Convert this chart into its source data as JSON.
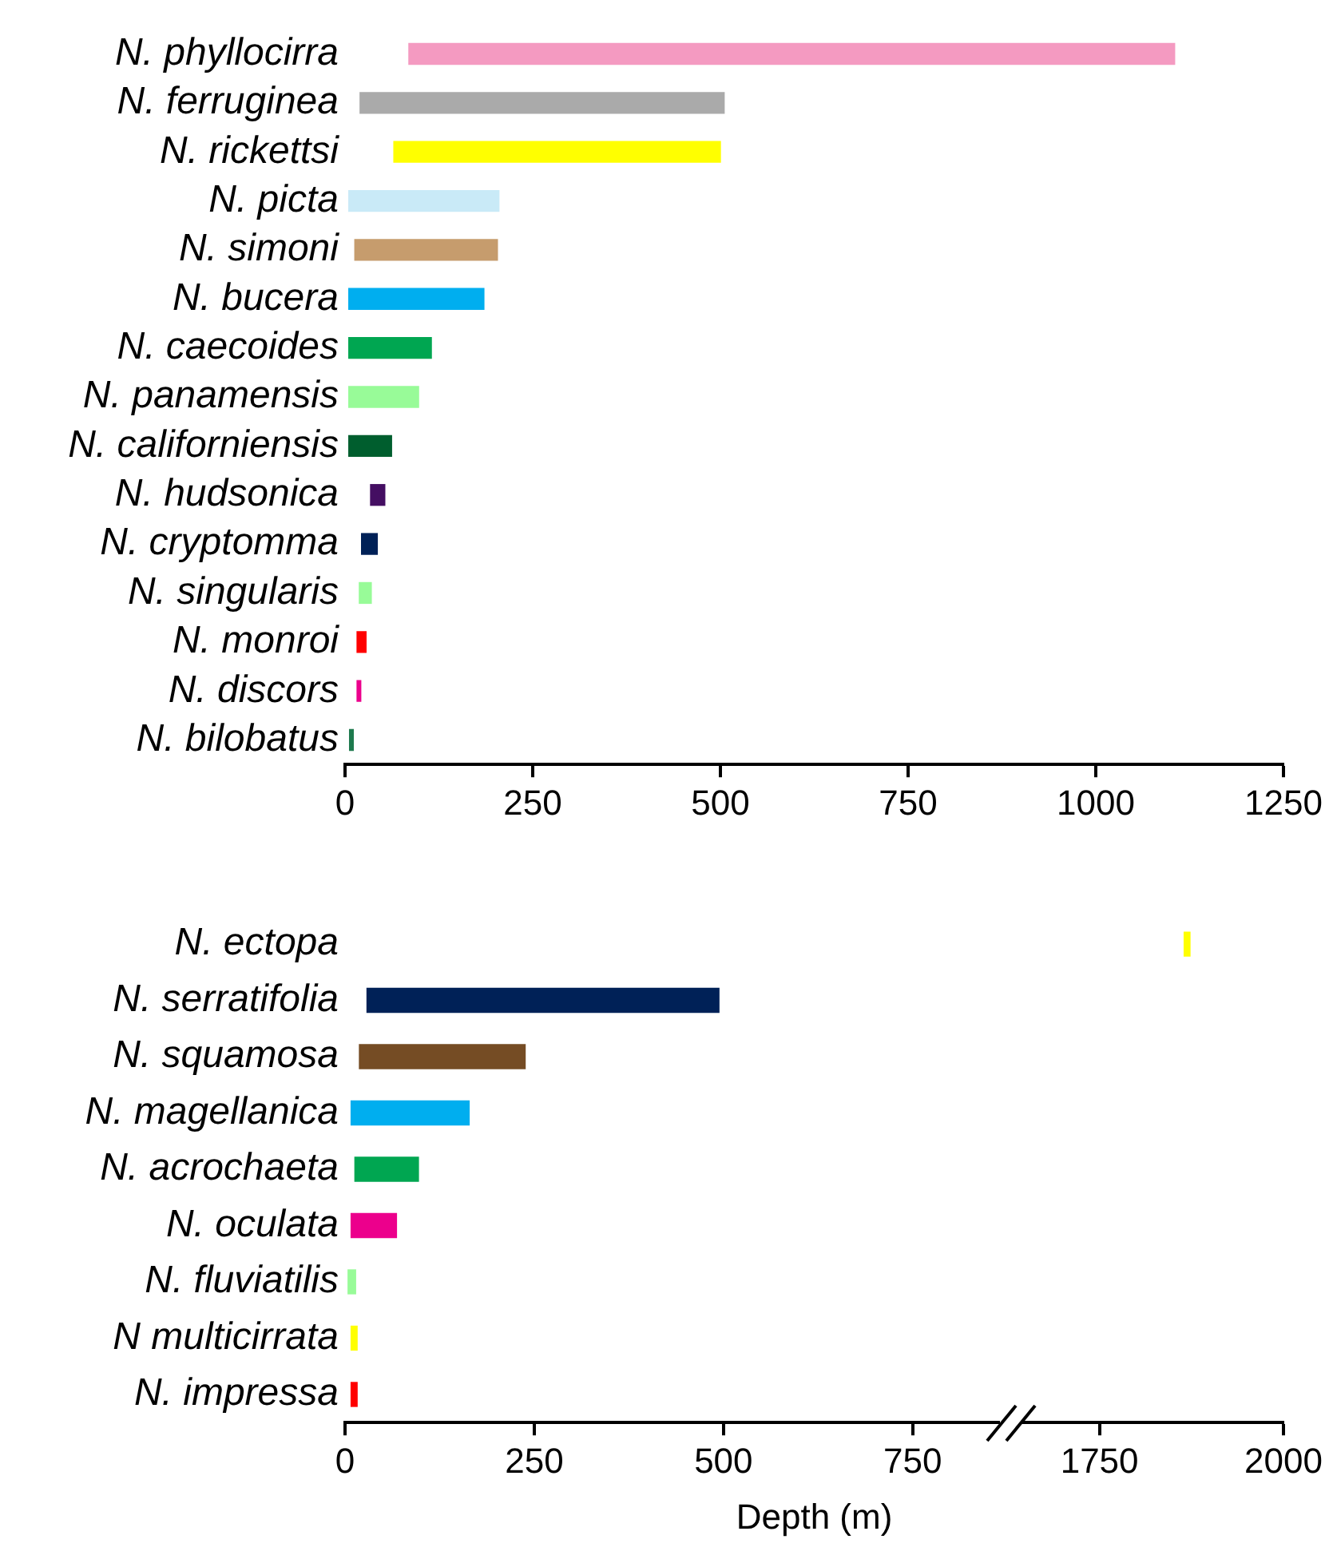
{
  "chart_data": [
    {
      "type": "bar",
      "orientation": "horizontal",
      "grid": false,
      "legend": false,
      "categories": [
        "N. phyllocirra",
        "N. ferruginea",
        "N. rickettsi",
        "N. picta",
        "N. simoni",
        "N. bucera",
        "N. caecoides",
        "N. panamensis",
        "N. californiensis",
        "N. hudsonica",
        "N. cryptomma",
        "N. singularis",
        "N. monroi",
        "N. discors",
        "N. bilobatus"
      ],
      "base": [
        85,
        20,
        65,
        5,
        13,
        5,
        5,
        5,
        5,
        34,
        22,
        19,
        16,
        16,
        6
      ],
      "values": [
        1020,
        485,
        435,
        200,
        190,
        180,
        110,
        93,
        57,
        19,
        21,
        16,
        12,
        5,
        5
      ],
      "colors": [
        "#f49ac1",
        "#aaaaaa",
        "#ffff00",
        "#c9eaf7",
        "#c69c6d",
        "#00aeef",
        "#00a651",
        "#98fb98",
        "#005e2e",
        "#440e62",
        "#002157",
        "#98fb98",
        "#ff0000",
        "#ec008c",
        "#1e7a4e"
      ],
      "xlim": [
        0,
        1250
      ],
      "xticks": [
        0,
        250,
        500,
        750,
        1000,
        1250
      ]
    },
    {
      "type": "bar",
      "orientation": "horizontal",
      "grid": false,
      "legend": false,
      "xlabel": "Depth (m)",
      "categories": [
        "N. ectopa",
        "N. serratifolia",
        "N. squamosa",
        "N. magellanica",
        "N. acrochaeta",
        "N. oculata",
        "N. fluviatilis",
        "N multicirrata",
        "N. impressa"
      ],
      "base": [
        null,
        29,
        19,
        8,
        13,
        8,
        4,
        8,
        8
      ],
      "values": [
        null,
        465,
        219,
        156,
        84,
        60,
        10,
        8,
        8
      ],
      "colors": [
        "#ffff00",
        "#002157",
        "#754c24",
        "#00aeef",
        "#00a651",
        "#ec008c",
        "#98fb98",
        "#ffff00",
        "#ff0000"
      ],
      "xlim": [
        0,
        880
      ],
      "xticks": [
        0,
        250,
        500,
        750
      ]
    },
    {
      "type": "bar",
      "orientation": "horizontal",
      "grid": false,
      "legend": false,
      "tick_labels": "x",
      "categories": [
        null,
        null,
        null,
        null,
        null,
        null,
        null,
        null,
        null
      ],
      "base": [
        1865,
        null,
        null,
        null,
        null,
        null,
        null,
        null,
        null
      ],
      "values": [
        8,
        null,
        null,
        null,
        null,
        null,
        null,
        null,
        null
      ],
      "colors": [
        "#ffff00",
        "#002157",
        "#754c24",
        "#00aeef",
        "#00a651",
        "#ec008c",
        "#98fb98",
        "#ffff00",
        "#ff0000"
      ],
      "xlim": [
        1630,
        2000
      ],
      "xticks": [
        1750,
        2000
      ]
    }
  ]
}
